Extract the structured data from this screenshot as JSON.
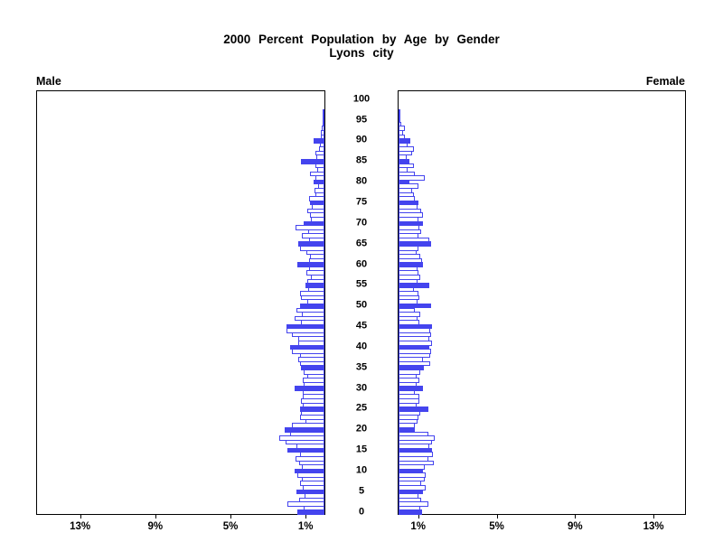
{
  "header": {
    "title_line1": "2000 Percent Population by Age by Gender",
    "title_line2": "Lyons city"
  },
  "colors": {
    "bar_blue": "#4444ee",
    "bar_hollow_fill": "#ffffff",
    "axis_black": "#000000",
    "background": "#ffffff"
  },
  "chart_data": {
    "type": "bar",
    "subtype": "population-pyramid",
    "title": "2000 Percent Population by Age by Gender",
    "subtitle": "Lyons city",
    "orientation": "horizontal back-to-back",
    "highlight_rule": "single-year bars; ages divisible by 5 drawn solid blue, others hollow with blue outline",
    "x_axis": {
      "tick_values_percent": [
        1,
        5,
        9,
        13
      ],
      "tick_label_suffix": "%",
      "male_tick_labels": [
        "13%",
        "9%",
        "5%",
        "1%"
      ],
      "female_tick_labels": [
        "1%",
        "5%",
        "9%",
        "13%"
      ],
      "max_percent_extent": 16
    },
    "y_axis": {
      "age_min": 0,
      "age_max": 100,
      "tick_step": 5,
      "age_ticks": [
        0,
        5,
        10,
        15,
        20,
        25,
        30,
        35,
        40,
        45,
        50,
        55,
        60,
        65,
        70,
        75,
        80,
        85,
        90,
        95,
        100
      ]
    },
    "series": [
      {
        "name": "Male",
        "side": "left",
        "unit": "percent of population",
        "values": [
          1.45,
          1.1,
          1.95,
          1.35,
          1.05,
          1.5,
          1.15,
          1.3,
          1.2,
          1.45,
          1.6,
          1.2,
          1.35,
          1.55,
          1.3,
          1.95,
          1.5,
          2.05,
          2.4,
          1.85,
          2.1,
          1.75,
          1.0,
          1.3,
          1.25,
          1.3,
          1.15,
          1.25,
          1.15,
          1.15,
          1.6,
          1.1,
          1.15,
          0.9,
          1.1,
          1.25,
          1.3,
          1.4,
          1.3,
          1.75,
          1.85,
          1.4,
          1.4,
          1.75,
          2.0,
          2.0,
          1.25,
          1.6,
          1.2,
          1.5,
          1.3,
          0.9,
          1.25,
          1.3,
          0.85,
          1.0,
          0.9,
          0.7,
          0.95,
          0.8,
          1.45,
          0.8,
          0.75,
          0.95,
          1.3,
          1.4,
          0.8,
          1.2,
          0.85,
          1.55,
          1.1,
          0.7,
          0.75,
          0.9,
          0.65,
          0.75,
          0.8,
          0.5,
          0.55,
          0.35,
          0.6,
          0.5,
          0.75,
          0.4,
          0.5,
          1.25,
          0.45,
          0.5,
          0.3,
          0.25,
          0.6,
          0.2,
          0.2,
          0.15,
          0.1,
          0.05,
          0.05,
          0.02,
          0,
          0,
          0
        ]
      },
      {
        "name": "Female",
        "side": "right",
        "unit": "percent of population",
        "values": [
          1.2,
          1.1,
          1.5,
          1.15,
          1.0,
          1.25,
          1.4,
          1.15,
          1.35,
          1.4,
          1.25,
          1.35,
          1.8,
          1.5,
          1.75,
          1.7,
          1.55,
          1.7,
          1.85,
          1.5,
          0.85,
          0.85,
          0.95,
          1.0,
          1.1,
          1.5,
          0.9,
          1.05,
          1.05,
          0.85,
          1.25,
          0.9,
          1.05,
          0.9,
          1.1,
          1.3,
          1.6,
          1.25,
          1.6,
          1.65,
          1.55,
          1.7,
          1.55,
          1.65,
          1.6,
          1.7,
          1.05,
          0.95,
          1.1,
          0.85,
          1.65,
          0.95,
          1.05,
          1.0,
          0.8,
          1.55,
          0.95,
          1.1,
          1.0,
          0.95,
          1.25,
          1.2,
          1.1,
          0.9,
          1.0,
          1.65,
          1.55,
          1.0,
          1.15,
          1.05,
          1.25,
          1.0,
          1.25,
          1.15,
          0.95,
          1.0,
          0.85,
          0.8,
          0.7,
          1.0,
          0.55,
          1.35,
          0.85,
          0.45,
          0.8,
          0.55,
          0.4,
          0.7,
          0.8,
          0.45,
          0.6,
          0.3,
          0.25,
          0.3,
          0.15,
          0.1,
          0.06,
          0.03,
          0,
          0,
          0
        ]
      }
    ]
  }
}
